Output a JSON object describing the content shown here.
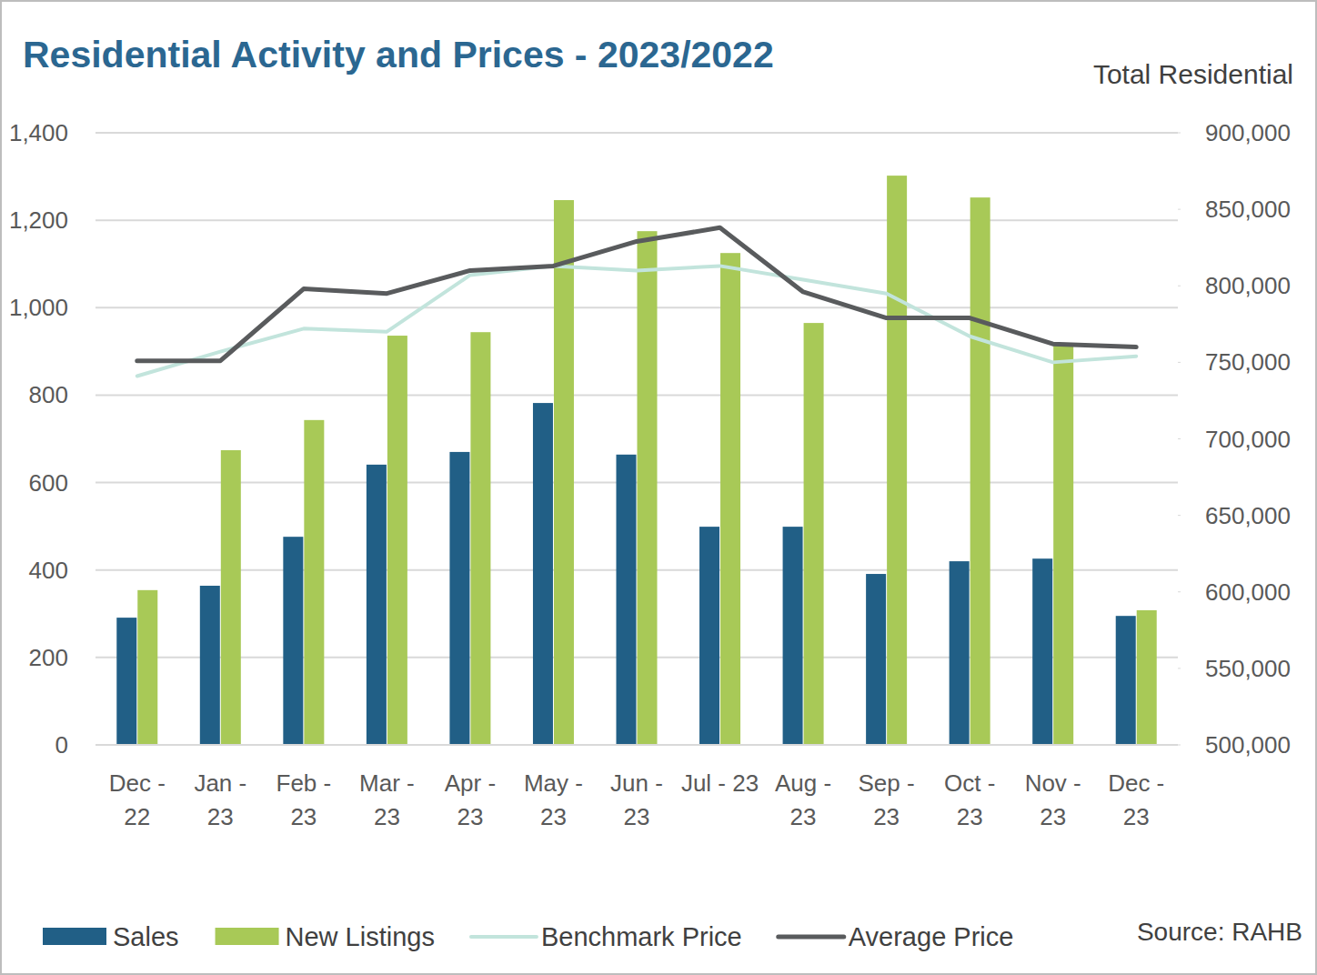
{
  "chart_data": {
    "type": "bar",
    "title": "Residential Activity and Prices - 2023/2022",
    "subtitle": "Total Residential",
    "source": "Source: RAHB",
    "categories": [
      "Dec - 22",
      "Jan - 23",
      "Feb - 23",
      "Mar - 23",
      "Apr - 23",
      "May - 23",
      "Jun - 23",
      "Jul - 23",
      "Aug - 23",
      "Sep - 23",
      "Oct - 23",
      "Nov - 23",
      "Dec - 23"
    ],
    "series": [
      {
        "name": "Sales",
        "type": "bar",
        "color": "#215f86",
        "values": [
          291,
          364,
          476,
          641,
          670,
          782,
          664,
          499,
          499,
          391,
          420,
          426,
          295
        ]
      },
      {
        "name": "New Listings",
        "type": "bar",
        "color": "#a8c957",
        "values": [
          354,
          674,
          743,
          936,
          944,
          1246,
          1175,
          1125,
          965,
          1302,
          1252,
          915,
          308
        ]
      },
      {
        "name": "Benchmark Price",
        "type": "line",
        "axis": "y2",
        "color": "#c2e4dc",
        "values": [
          741000,
          757000,
          772000,
          770000,
          807000,
          813000,
          810000,
          813000,
          804000,
          795000,
          767000,
          750000,
          754000
        ]
      },
      {
        "name": "Average Price",
        "type": "line",
        "axis": "y2",
        "color": "#595b5d",
        "values": [
          751000,
          751000,
          798000,
          795000,
          810000,
          813000,
          829000,
          838000,
          796000,
          779000,
          779000,
          762000,
          760000
        ]
      }
    ],
    "ylim": [
      0,
      1400
    ],
    "yticks": [
      0,
      200,
      400,
      600,
      800,
      {
        "value": 1000,
        "label": "1,000"
      },
      {
        "value": 1200,
        "label": "1,200"
      },
      {
        "value": 1400,
        "label": "1,400"
      }
    ],
    "y2lim": [
      500000,
      900000
    ],
    "y2ticks": [
      {
        "value": 500000,
        "label": "500,000"
      },
      {
        "value": 550000,
        "label": "550,000"
      },
      {
        "value": 600000,
        "label": "600,000"
      },
      {
        "value": 650000,
        "label": "650,000"
      },
      {
        "value": 700000,
        "label": "700,000"
      },
      {
        "value": 750000,
        "label": "750,000"
      },
      {
        "value": 800000,
        "label": "800,000"
      },
      {
        "value": 850000,
        "label": "850,000"
      },
      {
        "value": 900000,
        "label": "900,000"
      }
    ],
    "grid": true,
    "legend": "bottom"
  }
}
